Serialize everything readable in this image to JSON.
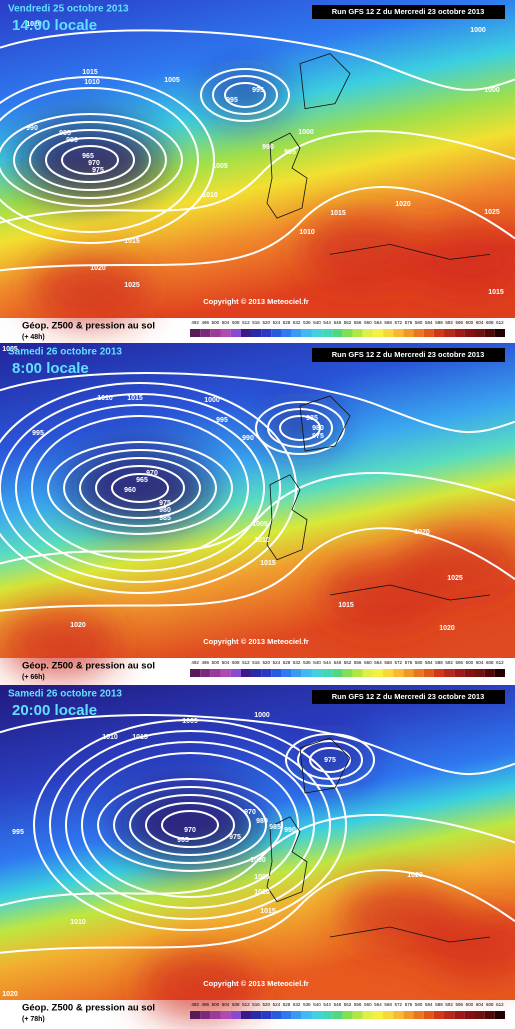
{
  "panels": [
    {
      "date": "Vendredi 25 octobre 2013",
      "time": "14:00 locale",
      "run": "Run GFS 12 Z du Mercredi 23 octobre 2013",
      "copyright": "Copyright © 2013 Meteociel.fr",
      "caption": "Géop. Z500 & pression au sol",
      "lead": "(+ 48h)",
      "isobars": [
        "1020",
        "1000",
        "1015",
        "1010",
        "1005",
        "995",
        "995",
        "1000",
        "990",
        "985",
        "980",
        "975",
        "970",
        "965",
        "1000",
        "990",
        "985",
        "1005",
        "1010",
        "1015",
        "1020",
        "1025",
        "1010",
        "1015",
        "1020",
        "1025",
        "1015"
      ]
    },
    {
      "date": "Samedi 26 octobre 2013",
      "time": "8:00 locale",
      "run": "Run GFS 12 Z du Mercredi 23 octobre 2013",
      "copyright": "Copyright © 2013 Meteociel.fr",
      "caption": "Géop. Z500 & pression au sol",
      "lead": "(+ 66h)",
      "isobars": [
        "1005",
        "1010",
        "1015",
        "1000",
        "995",
        "995",
        "990",
        "985",
        "980",
        "975",
        "970",
        "965",
        "960",
        "975",
        "980",
        "985",
        "1005",
        "1010",
        "1015",
        "1020",
        "1025",
        "1015",
        "1020",
        "1020"
      ]
    },
    {
      "date": "Samedi 26 octobre 2013",
      "time": "20:00 locale",
      "run": "Run GFS 12 Z du Mercredi 23 octobre 2013",
      "copyright": "Copyright © 2013 Meteociel.fr",
      "caption": "Géop. Z500 & pression au sol",
      "lead": "(+ 78h)",
      "isobars": [
        "1005",
        "1000",
        "1010",
        "1015",
        "975",
        "970",
        "965",
        "970",
        "975",
        "980",
        "985",
        "990",
        "995",
        "1000",
        "1005",
        "1010",
        "1010",
        "1015",
        "1020",
        "1020"
      ]
    }
  ],
  "scale": [
    492,
    496,
    500,
    504,
    508,
    512,
    516,
    520,
    524,
    528,
    532,
    536,
    540,
    544,
    548,
    552,
    556,
    560,
    564,
    568,
    572,
    576,
    580,
    584,
    588,
    592,
    596,
    600,
    604,
    608,
    612
  ]
}
